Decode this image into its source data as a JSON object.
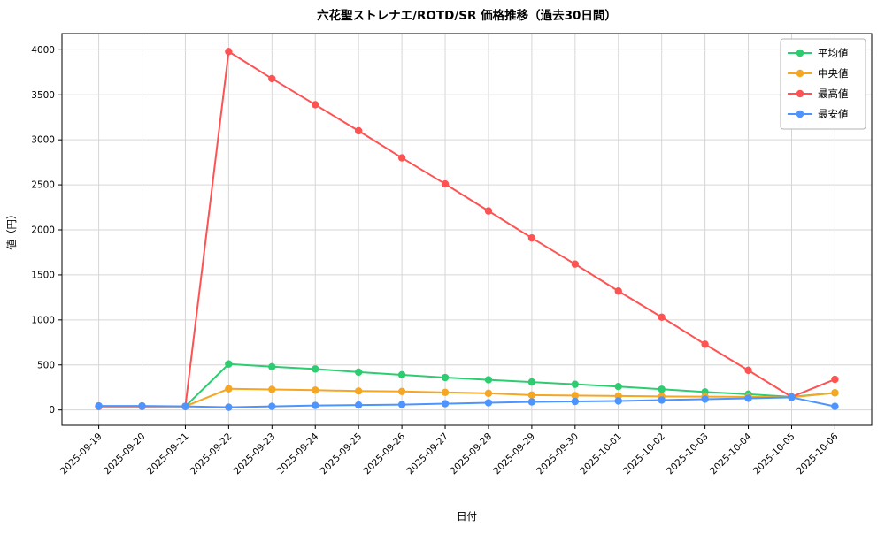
{
  "chart_data": {
    "type": "line",
    "title": "六花聖ストレナエ/ROTD/SR 価格推移（過去30日間）",
    "xlabel": "日付",
    "ylabel": "値（円）",
    "x": [
      "2025-09-19",
      "2025-09-20",
      "2025-09-21",
      "2025-09-22",
      "2025-09-23",
      "2025-09-24",
      "2025-09-25",
      "2025-09-26",
      "2025-09-27",
      "2025-09-28",
      "2025-09-29",
      "2025-09-30",
      "2025-10-01",
      "2025-10-02",
      "2025-10-03",
      "2025-10-04",
      "2025-10-05",
      "2025-10-06"
    ],
    "series": [
      {
        "name": "平均値",
        "color": "#2ecc71",
        "values": [
          40,
          40,
          40,
          510,
          480,
          455,
          420,
          390,
          360,
          335,
          310,
          285,
          260,
          230,
          200,
          175,
          145,
          190
        ]
      },
      {
        "name": "中央値",
        "color": "#f5a623",
        "values": [
          40,
          40,
          40,
          235,
          228,
          220,
          210,
          205,
          195,
          185,
          165,
          160,
          155,
          150,
          148,
          145,
          140,
          190
        ]
      },
      {
        "name": "最高値",
        "color": "#ff5252",
        "values": [
          40,
          40,
          40,
          3980,
          3680,
          3390,
          3100,
          2800,
          2510,
          2210,
          1910,
          1620,
          1320,
          1030,
          730,
          440,
          145,
          340
        ]
      },
      {
        "name": "最安値",
        "color": "#4d94ff",
        "values": [
          45,
          45,
          40,
          30,
          40,
          50,
          55,
          60,
          70,
          80,
          90,
          95,
          100,
          110,
          120,
          130,
          140,
          40
        ]
      }
    ],
    "ylim": [
      -170,
      4180
    ],
    "yticks": [
      0,
      500,
      1000,
      1500,
      2000,
      2500,
      3000,
      3500,
      4000
    ],
    "grid": true,
    "legend_position": "upper right"
  }
}
